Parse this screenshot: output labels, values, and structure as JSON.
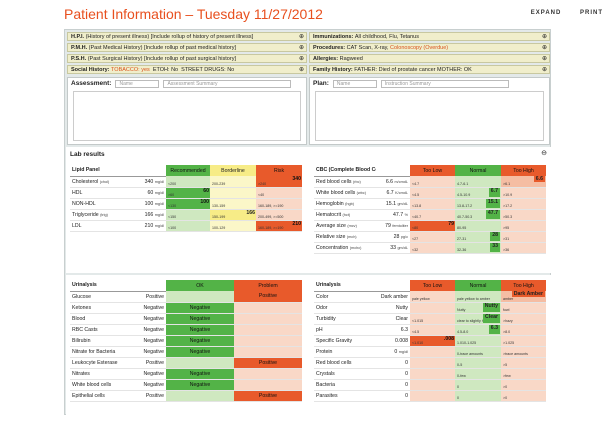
{
  "header": {
    "title": "Patient Information – Tuesday 11/27/2012",
    "expand": "EXPAND",
    "print": "PRINT"
  },
  "summary": {
    "hpi_label": "H.P.I.",
    "hpi_text": "(History of present illness) [Include rollup of history of present illness]",
    "pmh_label": "P.M.H.",
    "pmh_text": "(Past Medical History) [Include rollup of past medical history]",
    "psh_label": "P.S.H.",
    "psh_text": "(Past Surgical History) [Include rollup of past surgical history]",
    "social_label": "Social History:",
    "tobacco": "TOBACCO: yes",
    "etoh": "ETOH: No",
    "drugs": "STREET DRUGS: No",
    "imm_label": "Immunizations:",
    "imm_text": "All childhood, Flu, Tetanus",
    "proc_label": "Procedures:",
    "proc_text": "CAT Scan, X-ray,",
    "proc_link": "Colonoscopy (Overdue)",
    "allergy_label": "Allergies:",
    "allergy_text": "Ragweed",
    "family_label": "Family History:",
    "family_text": "FATHER: Died of prostate cancer    MOTHER: OK",
    "plus": "⊕"
  },
  "assessment": {
    "label": "Assessment:",
    "name_ph": "Name",
    "summary_ph": "Assessment Summary"
  },
  "plan": {
    "label": "Plan:",
    "name_ph": "Name",
    "summary_ph": "Instruction Summary"
  },
  "lab": {
    "title": "Lab results",
    "minus": "⊖"
  },
  "lipid": {
    "header": "Lipid Panel",
    "cols": [
      "Recommended",
      "Borderline",
      "Risk"
    ],
    "rows": [
      {
        "name": "Cholesterol",
        "sub": "(chol)",
        "val": "340",
        "unit": "mg/dl",
        "r1": "<200",
        "r2": "200-239",
        "r3": ">240",
        "mark": "340"
      },
      {
        "name": "HDL",
        "sub": "",
        "val": "60",
        "unit": "mg/dl",
        "r1": ">60",
        "r2": "",
        "r3": "<40",
        "mark": "60",
        "r3b": "<40"
      },
      {
        "name": "NON-HDL",
        "sub": "",
        "val": "100",
        "unit": "mg/dl",
        "r1": "<130",
        "r2": "130-159",
        "r3": "160-189, >=190",
        "mark": "100"
      },
      {
        "name": "Triglyceride",
        "sub": "(trig)",
        "val": "166",
        "unit": "mg/dl",
        "r1": "<150",
        "r2": "150-199",
        "r3": "200-499, >=500",
        "mark": "166"
      },
      {
        "name": "LDL",
        "sub": "",
        "val": "210",
        "unit": "mg/dl",
        "r1": "<100",
        "r2": "100-129",
        "r3": "160-189, >=190",
        "mark": "210"
      }
    ]
  },
  "cbc": {
    "header": "CBC (Complete Blood Count)",
    "cols": [
      "Too Low",
      "Normal",
      "Too High"
    ],
    "rows": [
      {
        "name": "Red blood cells",
        "sub": "(rbc)",
        "val": "6.6",
        "unit": "m/cmdL",
        "lo": "<4.7",
        "n": "4.7-6.1",
        "hi": ">6.1",
        "mark": "6.6",
        "pos": "hi"
      },
      {
        "name": "White blood cells",
        "sub": "(wbc)",
        "val": "6.7",
        "unit": "K/cmdL",
        "lo": "<4.5",
        "n": "4.5-10.9",
        "hi": ">10.9",
        "mark": "6.7",
        "pos": "n"
      },
      {
        "name": "Hemoglobin",
        "sub": "(hgb)",
        "val": "15.1",
        "unit": "gm/dL",
        "lo": "<13.8",
        "n": "13.8-17.2",
        "hi": ">17.2",
        "mark": "15.1",
        "pos": "n"
      },
      {
        "name": "Hematocrit",
        "sub": "(hct)",
        "val": "47.7",
        "unit": "%",
        "lo": "<40.7",
        "n": "40.7-50.3",
        "hi": ">50.3",
        "mark": "47.7",
        "pos": "n"
      },
      {
        "name": "Average size",
        "sub": "(mcv)",
        "val": "79",
        "unit": "femtoliter",
        "lo": "<80",
        "n": "80-95",
        "hi": ">95",
        "mark": "79",
        "pos": "lo"
      },
      {
        "name": "Relative size",
        "sub": "(mch)",
        "val": "28",
        "unit": "pg/c",
        "lo": "<27",
        "n": "27-31",
        "hi": ">31",
        "mark": "28",
        "pos": "n"
      },
      {
        "name": "Concentration",
        "sub": "(mchc)",
        "val": "33",
        "unit": "gm/dL",
        "lo": "<32",
        "n": "32-36",
        "hi": ">36",
        "mark": "33",
        "pos": "n"
      }
    ]
  },
  "urin1": {
    "header": "Urinalysis",
    "cols": [
      "OK",
      "Problem"
    ],
    "rows": [
      {
        "name": "Glucose",
        "val": "Positive",
        "ok": "",
        "prob": "Positive",
        "pos": "prob"
      },
      {
        "name": "Ketones",
        "val": "Negative",
        "ok": "Negative",
        "prob": "",
        "pos": "ok"
      },
      {
        "name": "Blood",
        "val": "Negative",
        "ok": "Negative",
        "prob": "",
        "pos": "ok"
      },
      {
        "name": "RBC Casts",
        "val": "Negative",
        "ok": "Negative",
        "prob": "",
        "pos": "ok"
      },
      {
        "name": "Bilirubin",
        "val": "Negative",
        "ok": "Negative",
        "prob": "",
        "pos": "ok"
      },
      {
        "name": "Nitrate for Bacteria",
        "val": "Negative",
        "ok": "Negative",
        "prob": "",
        "pos": "ok"
      },
      {
        "name": "Leukocyte Esterase",
        "val": "Positive",
        "ok": "",
        "prob": "Positive",
        "pos": "prob"
      },
      {
        "name": "Nitrates",
        "val": "Negative",
        "ok": "Negative",
        "prob": "",
        "pos": "ok"
      },
      {
        "name": "White blood cells",
        "val": "Negative",
        "ok": "Negative",
        "prob": "",
        "pos": "ok"
      },
      {
        "name": "Epithelial cells",
        "val": "Positive",
        "ok": "",
        "prob": "Positive",
        "pos": "prob"
      }
    ]
  },
  "urin2": {
    "header": "Urinalysis",
    "cols": [
      "Too Low",
      "Normal",
      "Too High"
    ],
    "rows": [
      {
        "name": "Color",
        "val": "Dark amber",
        "lo": "pale yellow",
        "n": "pale yellow to amber",
        "hi": "Dark Amber",
        "mark": "Dark Amber",
        "pos": "hi",
        "hisub": "amber"
      },
      {
        "name": "Odor",
        "val": "Nutty",
        "lo": "",
        "n": "Nutty",
        "hi": "",
        "mark": "Nutty",
        "pos": "n",
        "hisub": "fowl"
      },
      {
        "name": "Turbidity",
        "val": "Clear",
        "lo": "",
        "n": "Clear",
        "hi": "",
        "mark": "Clear",
        "pos": "n",
        "nsub": "clear to slightly hazy",
        "hisub": ">hazy",
        "losub": "<1.015"
      },
      {
        "name": "pH",
        "val": "6.3",
        "lo": "<4.5",
        "n": "4.5-8.0",
        "hi": ">8.0",
        "mark": "6.3",
        "pos": "n"
      },
      {
        "name": "Specific Gravity",
        "val": "0.008",
        "lo": "<1.010",
        "n": "1.010-1.025",
        "hi": ">1.025",
        "mark": ".008",
        "pos": "lo"
      },
      {
        "name": "Protein",
        "val": "0",
        "unit": "mg/dl",
        "lo": "",
        "n": "0-trace amounts",
        "hi": ">trace amounts",
        "mark": "",
        "pos": "n"
      },
      {
        "name": "Red blood cells",
        "val": "0",
        "unit": "",
        "lo": "",
        "n": "0-5",
        "hi": ">5",
        "mark": "",
        "pos": "n"
      },
      {
        "name": "Crystals",
        "val": "0",
        "unit": "",
        "lo": "",
        "n": "0-few",
        "hi": ">few",
        "mark": "",
        "pos": "n"
      },
      {
        "name": "Bacteria",
        "val": "0",
        "unit": "",
        "lo": "",
        "n": "0",
        "hi": ">0",
        "mark": "",
        "pos": "n"
      },
      {
        "name": "Parasites",
        "val": "0",
        "unit": "",
        "lo": "",
        "n": "0",
        "hi": ">0",
        "mark": "",
        "pos": "n"
      }
    ]
  }
}
